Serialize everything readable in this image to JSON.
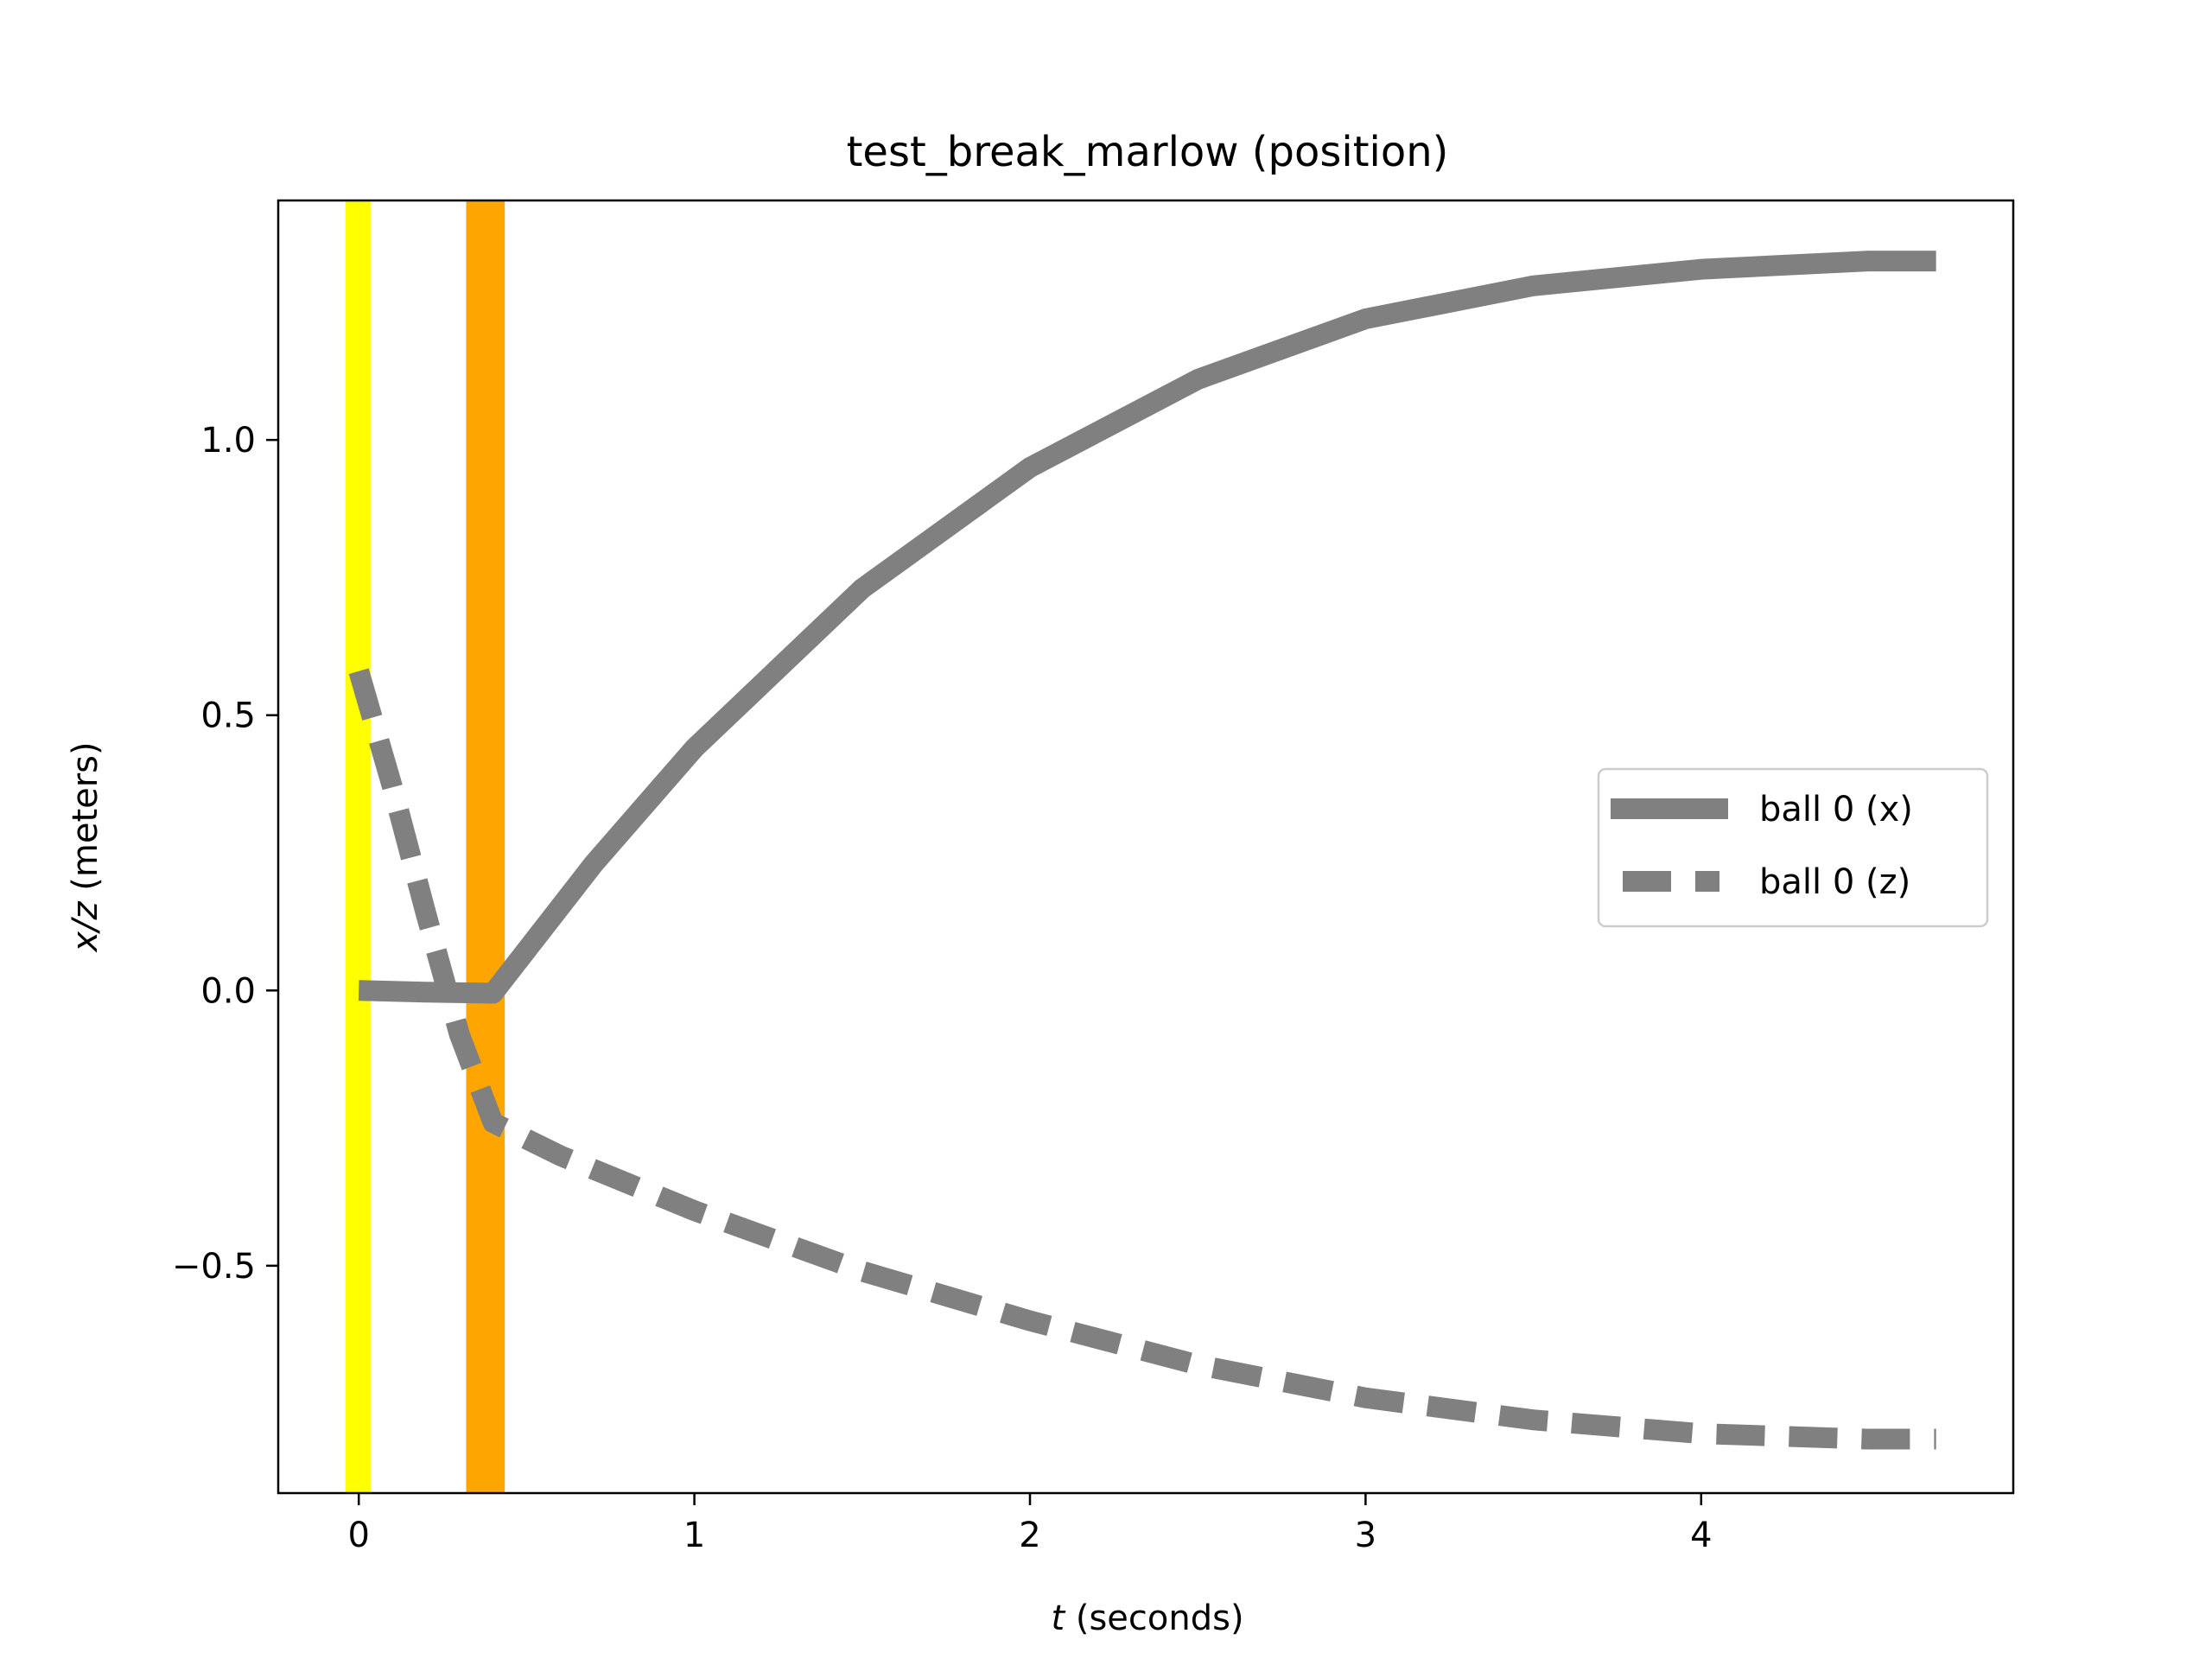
{
  "chart_data": {
    "type": "line",
    "title": "test_break_marlow (position)",
    "xlabel_var": "t",
    "xlabel_rest": " (seconds)",
    "ylabel_var": "x/z",
    "ylabel_rest": " (meters)",
    "xlim": [
      -0.24,
      4.93
    ],
    "ylim": [
      -0.913,
      1.435
    ],
    "xticks": [
      0,
      1,
      2,
      3,
      4
    ],
    "xtick_labels": [
      "0",
      "1",
      "2",
      "3",
      "4"
    ],
    "yticks": [
      -0.5,
      0.0,
      0.5,
      1.0
    ],
    "ytick_labels": [
      "−0.5",
      "0.0",
      "0.5",
      "1.0"
    ],
    "grid": false,
    "legend_position": "center-right",
    "event_bands": [
      {
        "color": "#ffff00",
        "x0": -0.04,
        "x1": 0.035
      },
      {
        "color": "#ffa500",
        "x0": 0.32,
        "x1": 0.435
      }
    ],
    "series": [
      {
        "name": "ball 0 (x)",
        "color": "#808080",
        "style": "solid",
        "x": [
          0.0,
          0.2,
          0.4,
          0.7,
          1.0,
          1.5,
          2.0,
          2.5,
          3.0,
          3.5,
          4.0,
          4.5,
          4.7
        ],
        "y": [
          0.0,
          -0.003,
          -0.005,
          0.23,
          0.44,
          0.73,
          0.95,
          1.11,
          1.22,
          1.28,
          1.31,
          1.325,
          1.325
        ]
      },
      {
        "name": "ball 0 (z)",
        "color": "#808080",
        "style": "dashed",
        "x": [
          0.0,
          0.1,
          0.2,
          0.3,
          0.4,
          0.6,
          1.0,
          1.5,
          2.0,
          2.5,
          3.0,
          3.5,
          4.0,
          4.5,
          4.7
        ],
        "y": [
          0.58,
          0.37,
          0.14,
          -0.08,
          -0.24,
          -0.3,
          -0.4,
          -0.51,
          -0.6,
          -0.68,
          -0.74,
          -0.78,
          -0.805,
          -0.815,
          -0.815
        ]
      }
    ]
  }
}
